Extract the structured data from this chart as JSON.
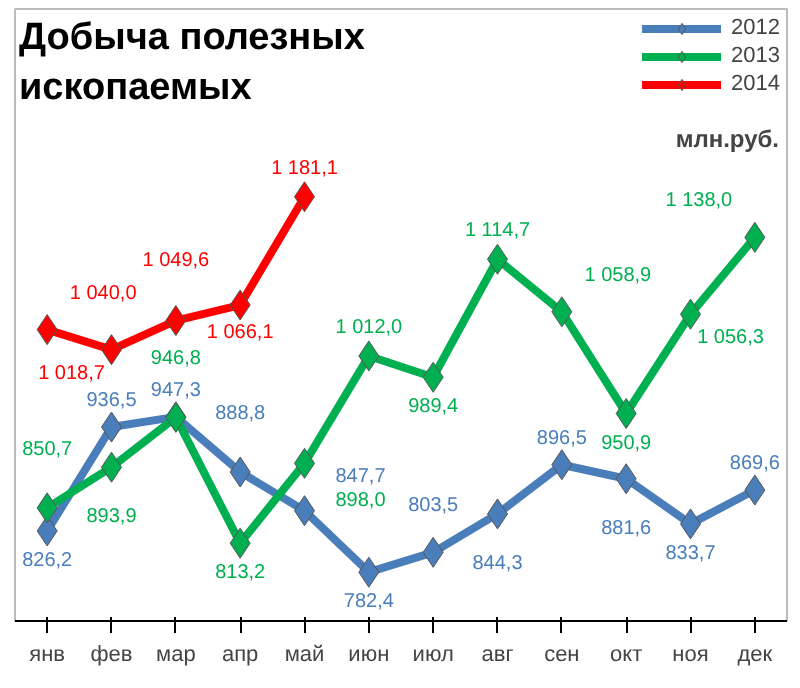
{
  "chart_data": {
    "type": "line",
    "title": "Добыча полезных\nископаемых",
    "annotations": [
      "млн.руб."
    ],
    "categories": [
      "янв",
      "фев",
      "мар",
      "апр",
      "май",
      "июн",
      "июл",
      "авг",
      "сен",
      "окт",
      "ноя",
      "дек"
    ],
    "series": [
      {
        "name": "2012",
        "color": "#4a7ebb",
        "values": [
          826.2,
          936.5,
          947.3,
          888.8,
          847.7,
          782.4,
          803.5,
          844.3,
          896.5,
          881.6,
          833.7,
          869.6
        ],
        "value_labels": [
          "826,2",
          "936,5",
          "947,3",
          "888,8",
          "847,7",
          "782,4",
          "803,5",
          "844,3",
          "896,5",
          "881,6",
          "833,7",
          "869,6"
        ]
      },
      {
        "name": "2013",
        "color": "#00b050",
        "values": [
          850.7,
          893.9,
          946.8,
          813.2,
          898.0,
          1012.0,
          989.4,
          1114.7,
          1058.9,
          950.9,
          1056.3,
          1138.0
        ],
        "value_labels": [
          "850,7",
          "893,9",
          "946,8",
          "813,2",
          "898,0",
          "1 012,0",
          "989,4",
          "1 114,7",
          "1 058,9",
          "950,9",
          "1 056,3",
          "1 138,0"
        ]
      },
      {
        "name": "2014",
        "color": "#ff0000",
        "values": [
          1040.0,
          1018.7,
          1049.6,
          1066.1,
          1181.1,
          null,
          null,
          null,
          null,
          null,
          null,
          null
        ],
        "value_labels": [
          "1 040,0",
          "1 018,7",
          "1 049,6",
          "1 066,1",
          "1 181,1",
          null,
          null,
          null,
          null,
          null,
          null,
          null
        ]
      }
    ],
    "legend": "top right",
    "marker": "diamond",
    "line_style": "solid",
    "grid": false
  }
}
